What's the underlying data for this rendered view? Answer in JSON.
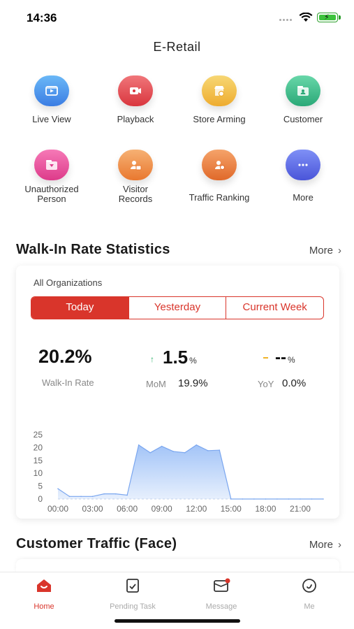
{
  "status_bar": {
    "time": "14:36"
  },
  "app": {
    "title": "E-Retail"
  },
  "grid": [
    {
      "label": "Live View",
      "icon": "live-view-icon",
      "color_top": "#6ab8f7",
      "color_bottom": "#3b7de3"
    },
    {
      "label": "Playback",
      "icon": "playback-icon",
      "color_top": "#f0767a",
      "color_bottom": "#d9363e"
    },
    {
      "label": "Store Arming",
      "icon": "store-arming-icon",
      "color_top": "#f7d774",
      "color_bottom": "#eeac2f"
    },
    {
      "label": "Customer",
      "icon": "customer-icon",
      "color_top": "#68d7a9",
      "color_bottom": "#2aa877"
    },
    {
      "label": "Unauthorized\nPerson",
      "icon": "unauthorized-person-icon",
      "color_top": "#f679b7",
      "color_bottom": "#dd3b8a"
    },
    {
      "label": "Visitor\nRecords",
      "icon": "visitor-records-icon",
      "color_top": "#f6b174",
      "color_bottom": "#e9782f"
    },
    {
      "label": "Traffic Ranking",
      "icon": "traffic-ranking-icon",
      "color_top": "#f5a36a",
      "color_bottom": "#e0692a"
    },
    {
      "label": "More",
      "icon": "more-icon",
      "color_top": "#7f90f6",
      "color_bottom": "#4a55d9"
    }
  ],
  "walkin": {
    "title": "Walk-In Rate Statistics",
    "more": "More",
    "org": "All Organizations",
    "tabs": [
      "Today",
      "Yesterday",
      "Current Week"
    ],
    "active_tab": "Today",
    "rate": "20.2%",
    "rate_label": "Walk-In Rate",
    "mom_value": "1.5",
    "mom_unit": "%",
    "mom_label": "MoM",
    "mom_percent": "19.9%",
    "yoy_value": "--",
    "yoy_unit": "%",
    "yoy_label": "YoY",
    "yoy_percent": "0.0%",
    "colors": {
      "accent": "#d9352b",
      "area": "#9ec1f7",
      "line": "#7aa6ef",
      "up": "#2db26b",
      "flat": "#f0b429"
    }
  },
  "chart_data": {
    "type": "area",
    "x": [
      0,
      1,
      2,
      3,
      4,
      5,
      6,
      7,
      8,
      9,
      10,
      11,
      12,
      13,
      14,
      15,
      16,
      17,
      18,
      19,
      20,
      21,
      22,
      23
    ],
    "values": [
      4,
      1,
      1,
      1,
      2,
      2,
      1.5,
      21,
      18,
      20.5,
      18.5,
      18,
      21,
      18.8,
      19,
      0,
      0,
      0,
      0,
      0,
      0,
      0,
      0,
      0
    ],
    "x_tick_labels": [
      "00:00",
      "03:00",
      "06:00",
      "09:00",
      "12:00",
      "15:00",
      "18:00",
      "21:00"
    ],
    "y_ticks": [
      0,
      5,
      10,
      15,
      20,
      25
    ],
    "ylim": [
      0,
      25
    ],
    "xlim": [
      0,
      23
    ],
    "grid": false,
    "title": "",
    "xlabel": "",
    "ylabel": ""
  },
  "traffic": {
    "title": "Customer Traffic (Face)",
    "more": "More"
  },
  "nav": [
    {
      "label": "Home",
      "icon": "home-icon",
      "active": true
    },
    {
      "label": "Pending Task",
      "icon": "pending-task-icon",
      "active": false
    },
    {
      "label": "Message",
      "icon": "message-icon",
      "active": false
    },
    {
      "label": "Me",
      "icon": "me-icon",
      "active": false
    }
  ]
}
